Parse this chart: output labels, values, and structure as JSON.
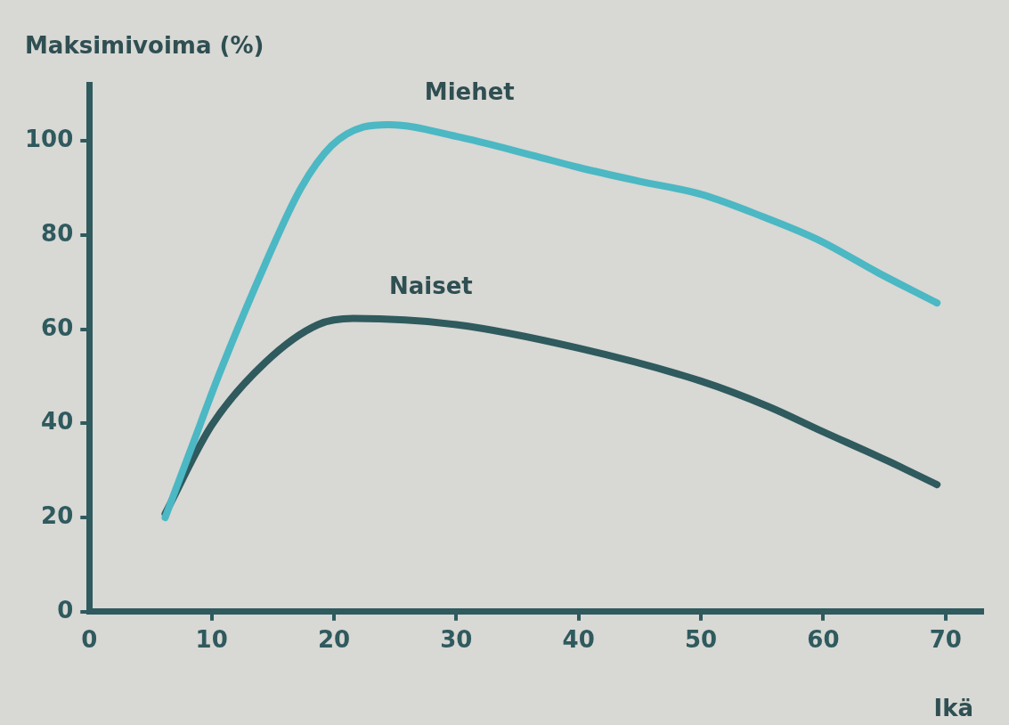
{
  "chart_data": {
    "type": "line",
    "ylabel": "Maksimivoima (%)",
    "xlabel": "Ikä",
    "xlim": [
      0,
      73
    ],
    "xticks": [
      0,
      10,
      20,
      30,
      40,
      50,
      60,
      70
    ],
    "ylim": [
      0,
      112
    ],
    "yticks": [
      0,
      20,
      40,
      60,
      80,
      100
    ],
    "grid": false,
    "legend": false,
    "marker": "none",
    "line_style": "solid",
    "series": [
      {
        "name": "Miehet",
        "color": "#4bb8c4",
        "x": [
          6.2,
          8.2,
          10.7,
          14.4,
          17.3,
          19.8,
          22.4,
          24.5,
          30,
          36.2,
          40,
          44.9,
          50,
          55,
          59.6,
          64.5,
          69.3
        ],
        "values": [
          20,
          33.8,
          51,
          74,
          90,
          99,
          103,
          103.5,
          101,
          97,
          94.4,
          91.5,
          88.7,
          84,
          79,
          72,
          65.6
        ]
      },
      {
        "name": "Naiset",
        "color": "#2f5a5e",
        "x": [
          6.2,
          10,
          14.4,
          18.7,
          21.6,
          30,
          40,
          50,
          55.6,
          59.6,
          65.3,
          69.3
        ],
        "values": [
          20.8,
          39.6,
          53,
          61,
          62.3,
          61,
          56,
          49,
          43.5,
          38.7,
          32,
          27
        ]
      }
    ]
  }
}
